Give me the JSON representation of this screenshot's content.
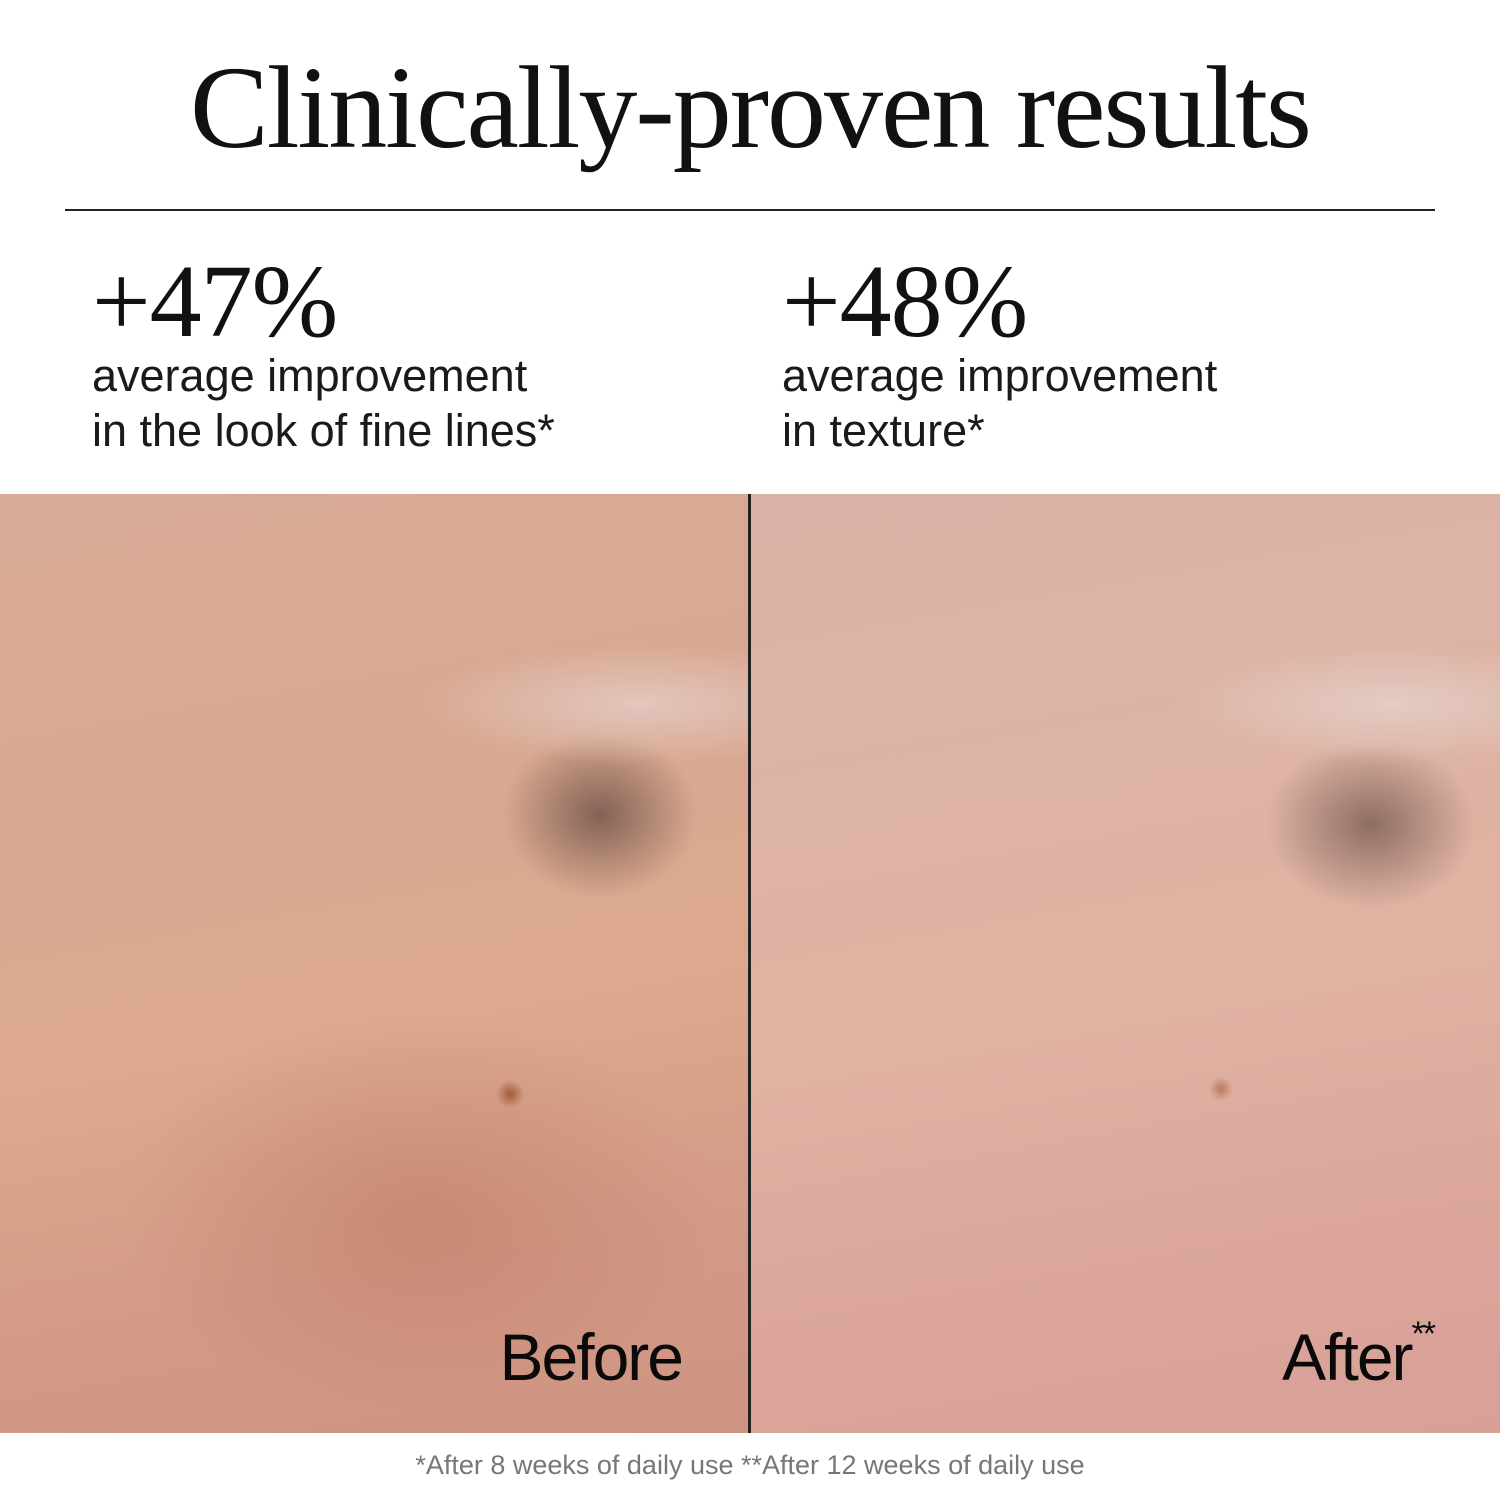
{
  "title": "Clinically-proven results",
  "stats": [
    {
      "value": "+47%",
      "line1": "average improvement",
      "line2": "in the look of fine lines*"
    },
    {
      "value": "+48%",
      "line1": "average improvement",
      "line2": "in texture*"
    }
  ],
  "photos": {
    "before_label": "Before",
    "after_label": "After",
    "after_marker": "**"
  },
  "footnote": "*After 8 weeks of daily use **After 12 weeks of daily use"
}
